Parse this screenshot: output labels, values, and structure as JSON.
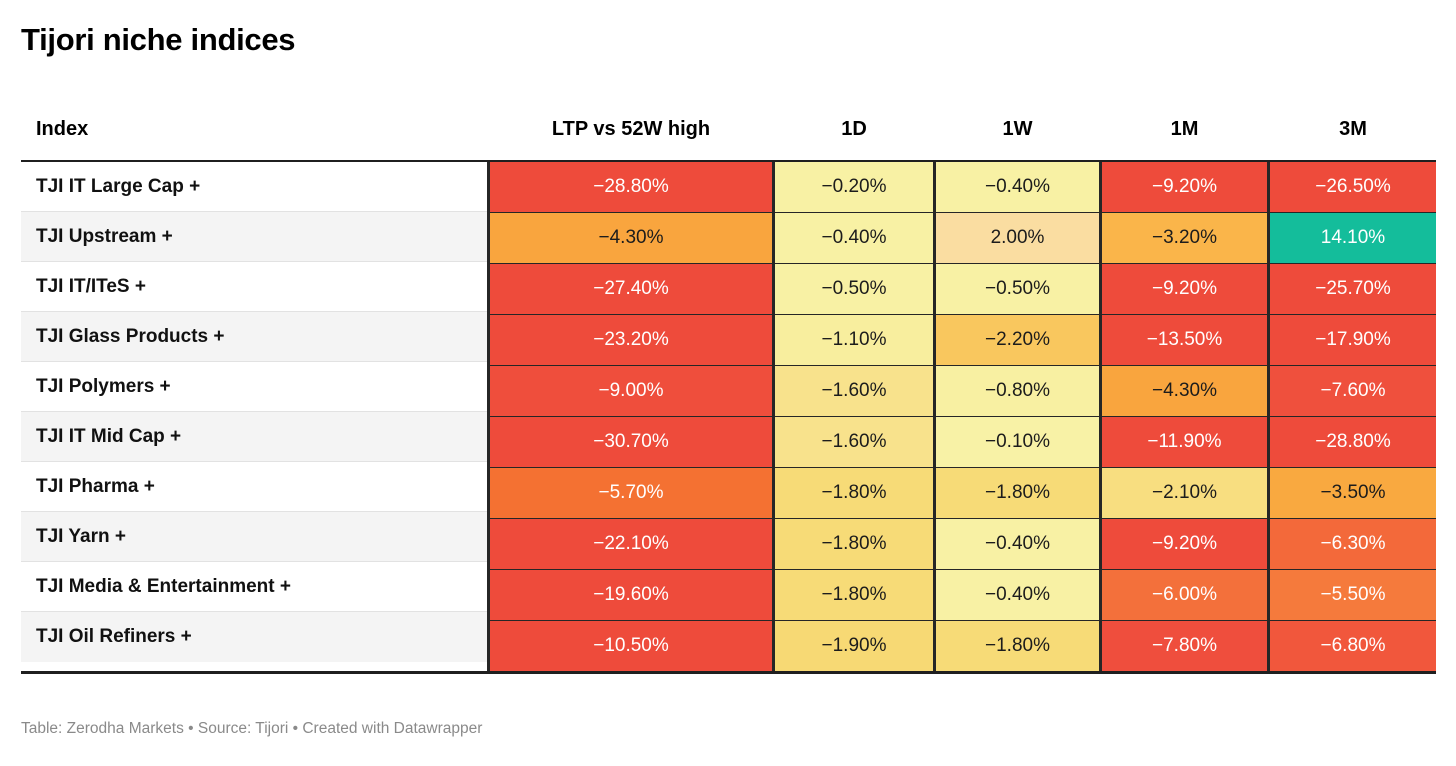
{
  "title": "Tijori niche indices",
  "footer": "Table: Zerodha Markets • Source: Tijori • Created with Datawrapper",
  "colors": {
    "border_dark": "#262626",
    "row_alt_bg": "#f4f4f4",
    "row_separator": "#e2e2e2",
    "footer_text": "#8a8a8a",
    "heat_negative_strong": "#ee4b3b",
    "heat_negative_mid": "#f9a53e",
    "heat_neutral": "#f8f1a4",
    "heat_positive_strong": "#14bd9b"
  },
  "table": {
    "index_header": "Index",
    "value_headers": [
      "LTP vs 52W high",
      "1D",
      "1W",
      "1M",
      "3M"
    ],
    "rows": [
      {
        "label": "TJI IT Large Cap +",
        "cells": [
          {
            "v": "−28.80%",
            "bg": "#ee4b3b",
            "fg": "#ffffff"
          },
          {
            "v": "−0.20%",
            "bg": "#f8f1a4",
            "fg": "#1c1c1c"
          },
          {
            "v": "−0.40%",
            "bg": "#f8f1a4",
            "fg": "#1c1c1c"
          },
          {
            "v": "−9.20%",
            "bg": "#ee4b3b",
            "fg": "#ffffff"
          },
          {
            "v": "−26.50%",
            "bg": "#ee4b3b",
            "fg": "#ffffff"
          }
        ]
      },
      {
        "label": "TJI Upstream +",
        "cells": [
          {
            "v": "−4.30%",
            "bg": "#f9a53e",
            "fg": "#1c1c1c"
          },
          {
            "v": "−0.40%",
            "bg": "#f8f1a4",
            "fg": "#1c1c1c"
          },
          {
            "v": "2.00%",
            "bg": "#fadda1",
            "fg": "#1c1c1c"
          },
          {
            "v": "−3.20%",
            "bg": "#fab54a",
            "fg": "#1c1c1c"
          },
          {
            "v": "14.10%",
            "bg": "#14bd9b",
            "fg": "#ffffff"
          }
        ]
      },
      {
        "label": "TJI IT/ITeS +",
        "cells": [
          {
            "v": "−27.40%",
            "bg": "#ee4b3b",
            "fg": "#ffffff"
          },
          {
            "v": "−0.50%",
            "bg": "#f8f1a4",
            "fg": "#1c1c1c"
          },
          {
            "v": "−0.50%",
            "bg": "#f8f1a4",
            "fg": "#1c1c1c"
          },
          {
            "v": "−9.20%",
            "bg": "#ee4b3b",
            "fg": "#ffffff"
          },
          {
            "v": "−25.70%",
            "bg": "#ee4b3b",
            "fg": "#ffffff"
          }
        ]
      },
      {
        "label": "TJI Glass Products +",
        "cells": [
          {
            "v": "−23.20%",
            "bg": "#ee4b3b",
            "fg": "#ffffff"
          },
          {
            "v": "−1.10%",
            "bg": "#f8ee9e",
            "fg": "#1c1c1c"
          },
          {
            "v": "−2.20%",
            "bg": "#f9c75e",
            "fg": "#1c1c1c"
          },
          {
            "v": "−13.50%",
            "bg": "#ee4b3b",
            "fg": "#ffffff"
          },
          {
            "v": "−17.90%",
            "bg": "#ee4b3b",
            "fg": "#ffffff"
          }
        ]
      },
      {
        "label": "TJI Polymers +",
        "cells": [
          {
            "v": "−9.00%",
            "bg": "#ef4e3c",
            "fg": "#ffffff"
          },
          {
            "v": "−1.60%",
            "bg": "#f8e28c",
            "fg": "#1c1c1c"
          },
          {
            "v": "−0.80%",
            "bg": "#f8f0a2",
            "fg": "#1c1c1c"
          },
          {
            "v": "−4.30%",
            "bg": "#f9a53e",
            "fg": "#1c1c1c"
          },
          {
            "v": "−7.60%",
            "bg": "#ef503d",
            "fg": "#ffffff"
          }
        ]
      },
      {
        "label": "TJI IT Mid Cap +",
        "cells": [
          {
            "v": "−30.70%",
            "bg": "#ee4b3b",
            "fg": "#ffffff"
          },
          {
            "v": "−1.60%",
            "bg": "#f8e28c",
            "fg": "#1c1c1c"
          },
          {
            "v": "−0.10%",
            "bg": "#f8f2a6",
            "fg": "#1c1c1c"
          },
          {
            "v": "−11.90%",
            "bg": "#ee4b3b",
            "fg": "#ffffff"
          },
          {
            "v": "−28.80%",
            "bg": "#ee4b3b",
            "fg": "#ffffff"
          }
        ]
      },
      {
        "label": "TJI Pharma +",
        "cells": [
          {
            "v": "−5.70%",
            "bg": "#f47132",
            "fg": "#ffffff"
          },
          {
            "v": "−1.80%",
            "bg": "#f7db77",
            "fg": "#1c1c1c"
          },
          {
            "v": "−1.80%",
            "bg": "#f7db77",
            "fg": "#1c1c1c"
          },
          {
            "v": "−2.10%",
            "bg": "#f8de80",
            "fg": "#1c1c1c"
          },
          {
            "v": "−3.50%",
            "bg": "#f9a940",
            "fg": "#1c1c1c"
          }
        ]
      },
      {
        "label": "TJI Yarn +",
        "cells": [
          {
            "v": "−22.10%",
            "bg": "#ee4b3b",
            "fg": "#ffffff"
          },
          {
            "v": "−1.80%",
            "bg": "#f7db77",
            "fg": "#1c1c1c"
          },
          {
            "v": "−0.40%",
            "bg": "#f8f1a4",
            "fg": "#1c1c1c"
          },
          {
            "v": "−9.20%",
            "bg": "#ee4b3b",
            "fg": "#ffffff"
          },
          {
            "v": "−6.30%",
            "bg": "#f3693a",
            "fg": "#ffffff"
          }
        ]
      },
      {
        "label": "TJI Media & Entertainment +",
        "cells": [
          {
            "v": "−19.60%",
            "bg": "#ee4b3b",
            "fg": "#ffffff"
          },
          {
            "v": "−1.80%",
            "bg": "#f7db77",
            "fg": "#1c1c1c"
          },
          {
            "v": "−0.40%",
            "bg": "#f8f1a4",
            "fg": "#1c1c1c"
          },
          {
            "v": "−6.00%",
            "bg": "#f3703b",
            "fg": "#ffffff"
          },
          {
            "v": "−5.50%",
            "bg": "#f57a3c",
            "fg": "#ffffff"
          }
        ]
      },
      {
        "label": "TJI Oil Refiners +",
        "cells": [
          {
            "v": "−10.50%",
            "bg": "#ee4b3b",
            "fg": "#ffffff"
          },
          {
            "v": "−1.90%",
            "bg": "#f7d974",
            "fg": "#1c1c1c"
          },
          {
            "v": "−1.80%",
            "bg": "#f7db77",
            "fg": "#1c1c1c"
          },
          {
            "v": "−7.80%",
            "bg": "#ef4e3d",
            "fg": "#ffffff"
          },
          {
            "v": "−6.80%",
            "bg": "#f1573c",
            "fg": "#ffffff"
          }
        ]
      }
    ]
  },
  "chart_data": {
    "type": "table",
    "title": "Tijori niche indices",
    "columns": [
      "Index",
      "LTP vs 52W high",
      "1D",
      "1W",
      "1M",
      "3M"
    ],
    "unit": "%",
    "rows": [
      [
        "TJI IT Large Cap +",
        -28.8,
        -0.2,
        -0.4,
        -9.2,
        -26.5
      ],
      [
        "TJI Upstream +",
        -4.3,
        -0.4,
        2.0,
        -3.2,
        14.1
      ],
      [
        "TJI IT/ITeS +",
        -27.4,
        -0.5,
        -0.5,
        -9.2,
        -25.7
      ],
      [
        "TJI Glass Products +",
        -23.2,
        -1.1,
        -2.2,
        -13.5,
        -17.9
      ],
      [
        "TJI Polymers +",
        -9.0,
        -1.6,
        -0.8,
        -4.3,
        -7.6
      ],
      [
        "TJI IT Mid Cap +",
        -30.7,
        -1.6,
        -0.1,
        -11.9,
        -28.8
      ],
      [
        "TJI Pharma +",
        -5.7,
        -1.8,
        -1.8,
        -2.1,
        -3.5
      ],
      [
        "TJI Yarn +",
        -22.1,
        -1.8,
        -0.4,
        -9.2,
        -6.3
      ],
      [
        "TJI Media & Entertainment +",
        -19.6,
        -1.8,
        -0.4,
        -6.0,
        -5.5
      ],
      [
        "TJI Oil Refiners +",
        -10.5,
        -1.9,
        -1.8,
        -7.8,
        -6.8
      ]
    ],
    "layout": {
      "heatmap": "red (negative) to yellow (near zero) to teal (positive)",
      "grid": "dark separators between value columns and rows",
      "legend": "none"
    }
  }
}
